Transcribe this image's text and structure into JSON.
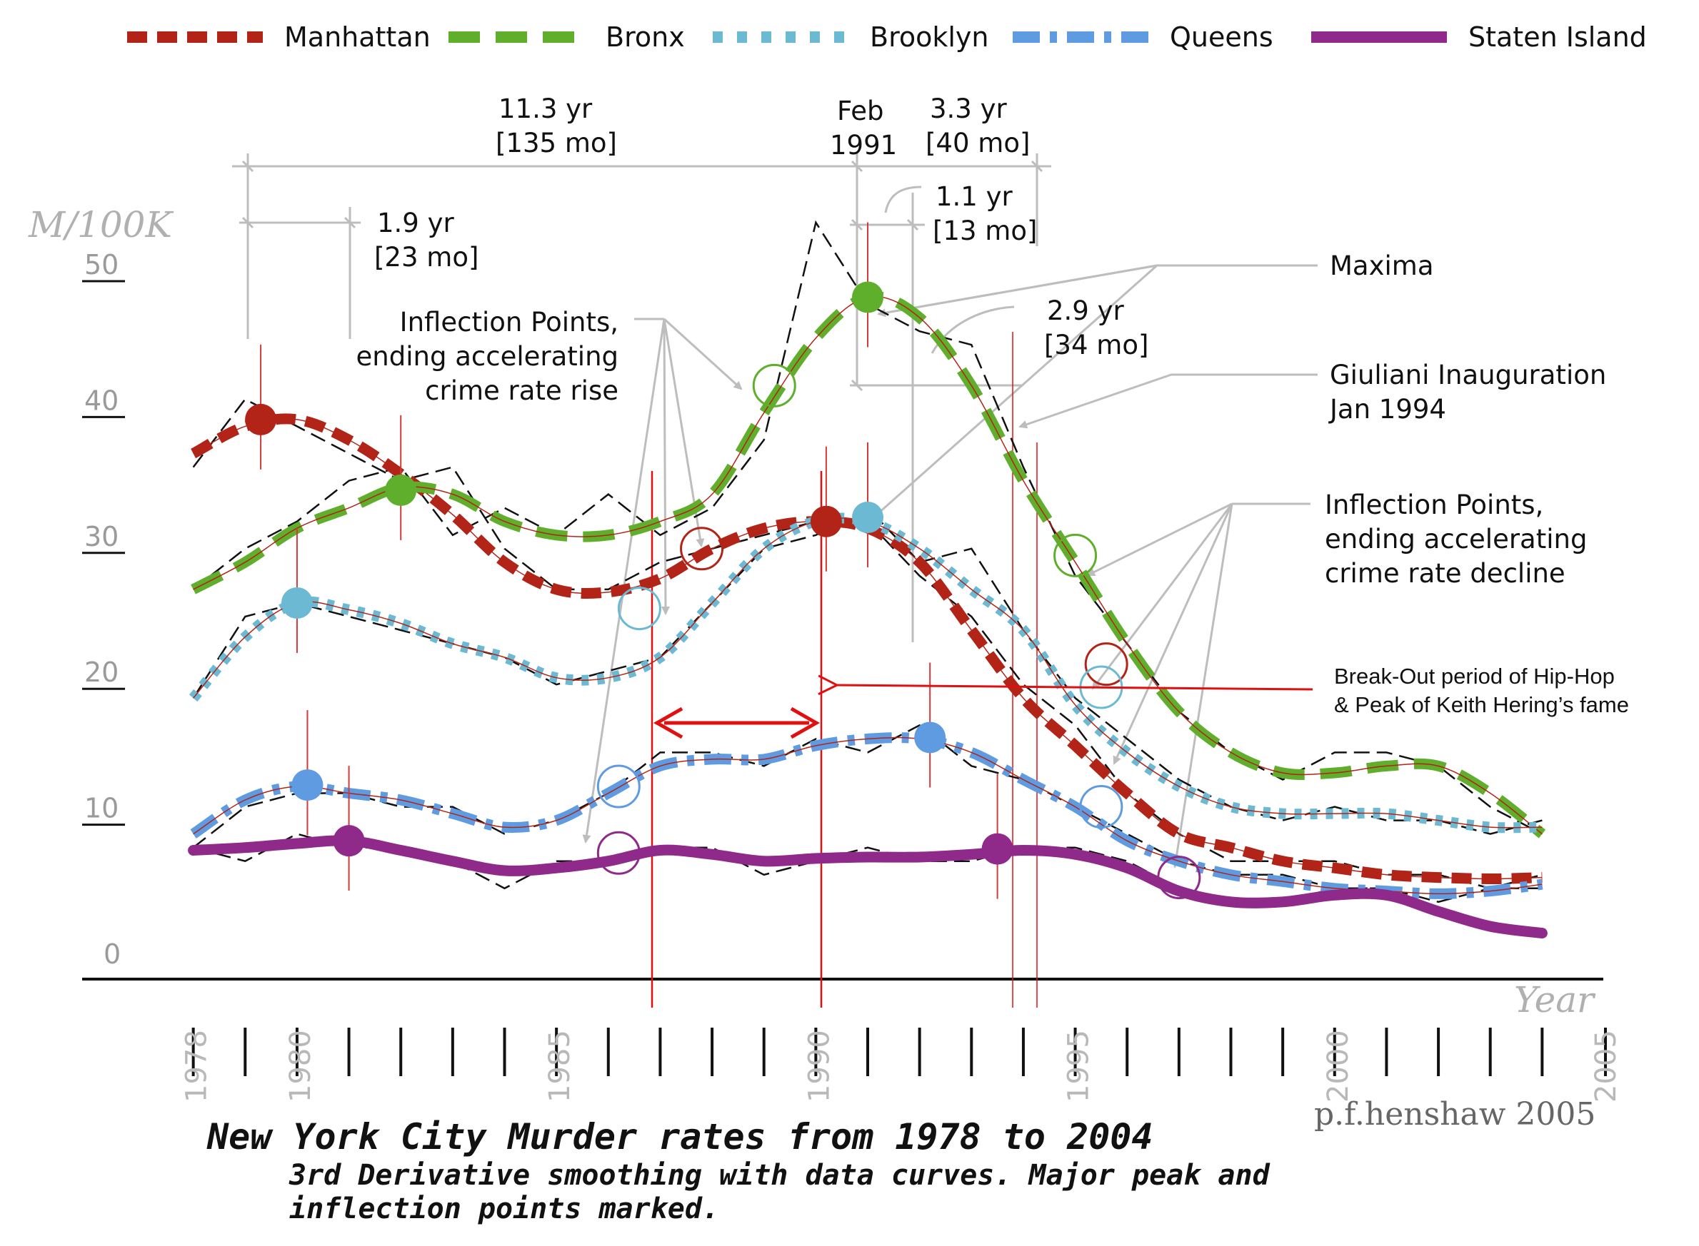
{
  "chart_data": {
    "type": "line",
    "title": "New York City Murder rates from 1978 to 2004",
    "subtitle_line1": "3rd Derivative smoothing with data curves. Major peak and",
    "subtitle_line2": "inflection points marked.",
    "credit": "p.f.henshaw 2005",
    "ylabel": "M/100K",
    "xlabel": "Year",
    "ylim": [
      0,
      50
    ],
    "xlim": [
      1977,
      2005
    ],
    "y_ticks": [
      "0",
      "10",
      "20",
      "30",
      "40",
      "50"
    ],
    "x_tick_labels": [
      "1978",
      "1980",
      "1985",
      "1990",
      "1995",
      "2000",
      "2005"
    ],
    "grid": false,
    "legend_position": "top",
    "series": [
      {
        "name": "Manhattan",
        "color": "#b22418",
        "style": "dashed",
        "smooth": [
          [
            1978,
            37.0
          ],
          [
            1979,
            39.0
          ],
          [
            1980,
            39.5
          ],
          [
            1981,
            38.0
          ],
          [
            1982,
            35.5
          ],
          [
            1983,
            32.5
          ],
          [
            1984,
            29.0
          ],
          [
            1985,
            27.0
          ],
          [
            1986,
            26.8
          ],
          [
            1987,
            27.8
          ],
          [
            1988,
            30.0
          ],
          [
            1989,
            31.5
          ],
          [
            1990,
            32.0
          ],
          [
            1991,
            31.5
          ],
          [
            1992,
            29.0
          ],
          [
            1993,
            24.0
          ],
          [
            1994,
            19.0
          ],
          [
            1995,
            15.5
          ],
          [
            1996,
            12.0
          ],
          [
            1997,
            9.0
          ],
          [
            1998,
            8.0
          ],
          [
            1999,
            7.0
          ],
          [
            2000,
            6.5
          ],
          [
            2001,
            6.0
          ],
          [
            2002,
            5.8
          ],
          [
            2003,
            5.7
          ],
          [
            2004,
            5.8
          ]
        ],
        "raw": [
          [
            1978,
            36
          ],
          [
            1979,
            41
          ],
          [
            1980,
            39
          ],
          [
            1981,
            37
          ],
          [
            1982,
            35
          ],
          [
            1983,
            36
          ],
          [
            1984,
            30
          ],
          [
            1985,
            27
          ],
          [
            1986,
            27
          ],
          [
            1987,
            29
          ],
          [
            1988,
            30
          ],
          [
            1989,
            31
          ],
          [
            1990,
            32
          ],
          [
            1991,
            32
          ],
          [
            1992,
            28
          ],
          [
            1993,
            25
          ],
          [
            1994,
            20
          ],
          [
            1995,
            17
          ],
          [
            1996,
            12
          ],
          [
            1997,
            9
          ],
          [
            1998,
            7
          ],
          [
            1999,
            7
          ],
          [
            2000,
            7
          ],
          [
            2001,
            6
          ],
          [
            2002,
            6
          ],
          [
            2003,
            5
          ],
          [
            2004,
            6
          ]
        ],
        "maxima": [
          [
            1979.3,
            39.5
          ],
          [
            1990.2,
            32.0
          ]
        ],
        "inflection_points": [
          [
            1987.8,
            30.0
          ],
          [
            1995.6,
            21.5
          ]
        ]
      },
      {
        "name": "Bronx",
        "color": "#5fae2c",
        "style": "long-dashed",
        "smooth": [
          [
            1978,
            27.0
          ],
          [
            1979,
            29.0
          ],
          [
            1980,
            31.5
          ],
          [
            1981,
            33.0
          ],
          [
            1982,
            34.5
          ],
          [
            1983,
            34.0
          ],
          [
            1984,
            32.0
          ],
          [
            1985,
            31.0
          ],
          [
            1986,
            31.0
          ],
          [
            1987,
            32.0
          ],
          [
            1988,
            34.0
          ],
          [
            1989,
            40.0
          ],
          [
            1990,
            45.5
          ],
          [
            1991,
            48.5
          ],
          [
            1992,
            47.0
          ],
          [
            1993,
            42.0
          ],
          [
            1994,
            35.0
          ],
          [
            1995,
            29.0
          ],
          [
            1996,
            23.0
          ],
          [
            1997,
            18.0
          ],
          [
            1998,
            15.0
          ],
          [
            1999,
            13.5
          ],
          [
            2000,
            13.5
          ],
          [
            2001,
            14.0
          ],
          [
            2002,
            14.0
          ],
          [
            2003,
            12.0
          ],
          [
            2004,
            9.0
          ]
        ],
        "raw": [
          [
            1978,
            27
          ],
          [
            1979,
            30
          ],
          [
            1980,
            32
          ],
          [
            1981,
            35
          ],
          [
            1982,
            36
          ],
          [
            1983,
            31
          ],
          [
            1984,
            33
          ],
          [
            1985,
            31
          ],
          [
            1986,
            34
          ],
          [
            1987,
            31
          ],
          [
            1988,
            33
          ],
          [
            1989,
            38
          ],
          [
            1990,
            54
          ],
          [
            1991,
            48
          ],
          [
            1992,
            46
          ],
          [
            1993,
            45
          ],
          [
            1994,
            36
          ],
          [
            1995,
            28
          ],
          [
            1996,
            23
          ],
          [
            1997,
            18
          ],
          [
            1998,
            15
          ],
          [
            1999,
            13
          ],
          [
            2000,
            15
          ],
          [
            2001,
            15
          ],
          [
            2002,
            14
          ],
          [
            2003,
            11
          ],
          [
            2004,
            9
          ]
        ],
        "maxima": [
          [
            1982.0,
            34.3
          ],
          [
            1991.0,
            48.5
          ]
        ],
        "inflection_points": [
          [
            1989.2,
            42.0
          ],
          [
            1995.0,
            29.5
          ]
        ]
      },
      {
        "name": "Brooklyn",
        "color": "#6cb9d3",
        "style": "dotted",
        "smooth": [
          [
            1978,
            19.0
          ],
          [
            1979,
            23.5
          ],
          [
            1980,
            26.0
          ],
          [
            1981,
            25.5
          ],
          [
            1982,
            24.5
          ],
          [
            1983,
            23.0
          ],
          [
            1984,
            22.0
          ],
          [
            1985,
            20.5
          ],
          [
            1986,
            20.5
          ],
          [
            1987,
            22.0
          ],
          [
            1988,
            26.0
          ],
          [
            1989,
            30.0
          ],
          [
            1990,
            32.0
          ],
          [
            1991,
            32.0
          ],
          [
            1992,
            30.0
          ],
          [
            1993,
            27.0
          ],
          [
            1994,
            24.0
          ],
          [
            1995,
            18.5
          ],
          [
            1996,
            15.0
          ],
          [
            1997,
            12.5
          ],
          [
            1998,
            11.0
          ],
          [
            1999,
            10.5
          ],
          [
            2000,
            10.5
          ],
          [
            2001,
            10.5
          ],
          [
            2002,
            10.0
          ],
          [
            2003,
            9.5
          ],
          [
            2004,
            9.5
          ]
        ],
        "raw": [
          [
            1978,
            19
          ],
          [
            1979,
            25
          ],
          [
            1980,
            26
          ],
          [
            1981,
            25
          ],
          [
            1982,
            24
          ],
          [
            1983,
            23
          ],
          [
            1984,
            22
          ],
          [
            1985,
            20
          ],
          [
            1986,
            21
          ],
          [
            1987,
            22
          ],
          [
            1988,
            26
          ],
          [
            1989,
            30
          ],
          [
            1990,
            31
          ],
          [
            1991,
            33
          ],
          [
            1992,
            29
          ],
          [
            1993,
            30
          ],
          [
            1994,
            24
          ],
          [
            1995,
            19
          ],
          [
            1996,
            16
          ],
          [
            1997,
            13
          ],
          [
            1998,
            11
          ],
          [
            1999,
            10
          ],
          [
            2000,
            11
          ],
          [
            2001,
            10
          ],
          [
            2002,
            10
          ],
          [
            2003,
            9
          ],
          [
            2004,
            10
          ]
        ],
        "maxima": [
          [
            1980.0,
            26.0
          ],
          [
            1991.0,
            32.3
          ]
        ],
        "inflection_points": [
          [
            1986.6,
            25.6
          ],
          [
            1995.5,
            19.8
          ]
        ]
      },
      {
        "name": "Queens",
        "color": "#5e9be0",
        "style": "dash-dot",
        "smooth": [
          [
            1978,
            9.0
          ],
          [
            1979,
            11.5
          ],
          [
            1980,
            12.5
          ],
          [
            1981,
            12.0
          ],
          [
            1982,
            11.5
          ],
          [
            1983,
            10.5
          ],
          [
            1984,
            9.5
          ],
          [
            1985,
            10.0
          ],
          [
            1986,
            12.0
          ],
          [
            1987,
            14.0
          ],
          [
            1988,
            14.5
          ],
          [
            1989,
            14.5
          ],
          [
            1990,
            15.5
          ],
          [
            1991,
            16.0
          ],
          [
            1992,
            16.0
          ],
          [
            1993,
            15.0
          ],
          [
            1994,
            13.0
          ],
          [
            1995,
            11.0
          ],
          [
            1996,
            8.5
          ],
          [
            1997,
            7.0
          ],
          [
            1998,
            6.0
          ],
          [
            1999,
            5.5
          ],
          [
            2000,
            5.0
          ],
          [
            2001,
            4.8
          ],
          [
            2002,
            4.6
          ],
          [
            2003,
            4.8
          ],
          [
            2004,
            5.3
          ]
        ],
        "raw": [
          [
            1978,
            8
          ],
          [
            1979,
            11
          ],
          [
            1980,
            12
          ],
          [
            1981,
            12
          ],
          [
            1982,
            11
          ],
          [
            1983,
            11
          ],
          [
            1984,
            9
          ],
          [
            1985,
            10
          ],
          [
            1986,
            12
          ],
          [
            1987,
            15
          ],
          [
            1988,
            15
          ],
          [
            1989,
            14
          ],
          [
            1990,
            16
          ],
          [
            1991,
            15
          ],
          [
            1992,
            17
          ],
          [
            1993,
            14
          ],
          [
            1994,
            13
          ],
          [
            1995,
            11
          ],
          [
            1996,
            9
          ],
          [
            1997,
            7
          ],
          [
            1998,
            6
          ],
          [
            1999,
            6
          ],
          [
            2000,
            5
          ],
          [
            2001,
            5
          ],
          [
            2002,
            4
          ],
          [
            2003,
            5
          ],
          [
            2004,
            5
          ]
        ],
        "maxima": [
          [
            1980.2,
            12.6
          ],
          [
            1992.2,
            16.1
          ]
        ],
        "inflection_points": [
          [
            1986.2,
            12.5
          ],
          [
            1995.5,
            11.0
          ]
        ]
      },
      {
        "name": "Staten Island",
        "color": "#8f2a8a",
        "style": "solid",
        "smooth": [
          [
            1978,
            7.8
          ],
          [
            1979,
            8.0
          ],
          [
            1980,
            8.3
          ],
          [
            1981,
            8.5
          ],
          [
            1982,
            7.8
          ],
          [
            1983,
            7.0
          ],
          [
            1984,
            6.3
          ],
          [
            1985,
            6.5
          ],
          [
            1986,
            7.0
          ],
          [
            1987,
            7.8
          ],
          [
            1988,
            7.5
          ],
          [
            1989,
            7.0
          ],
          [
            1990,
            7.2
          ],
          [
            1991,
            7.3
          ],
          [
            1992,
            7.3
          ],
          [
            1993,
            7.5
          ],
          [
            1994,
            7.8
          ],
          [
            1995,
            7.5
          ],
          [
            1996,
            6.5
          ],
          [
            1997,
            4.8
          ],
          [
            1998,
            4.0
          ],
          [
            1999,
            4.0
          ],
          [
            2000,
            4.5
          ],
          [
            2001,
            4.5
          ],
          [
            2002,
            3.3
          ],
          [
            2003,
            2.2
          ],
          [
            2004,
            1.7
          ]
        ],
        "raw": [
          [
            1978,
            8
          ],
          [
            1979,
            7
          ],
          [
            1980,
            9
          ],
          [
            1981,
            8
          ],
          [
            1982,
            8
          ],
          [
            1983,
            7
          ],
          [
            1984,
            5
          ],
          [
            1985,
            7
          ],
          [
            1986,
            7
          ],
          [
            1987,
            8
          ],
          [
            1988,
            8
          ],
          [
            1989,
            6
          ],
          [
            1990,
            7
          ],
          [
            1991,
            8
          ],
          [
            1992,
            7
          ],
          [
            1993,
            7
          ],
          [
            1994,
            8
          ],
          [
            1995,
            8
          ],
          [
            1996,
            7
          ],
          [
            1997,
            5
          ],
          [
            1998,
            4
          ],
          [
            1999,
            4
          ],
          [
            2000,
            5
          ],
          [
            2001,
            5
          ],
          [
            2002,
            3
          ],
          [
            2003,
            2
          ],
          [
            2004,
            2
          ]
        ],
        "maxima": [
          [
            1981.0,
            8.5
          ],
          [
            1993.5,
            7.9
          ]
        ],
        "inflection_points": [
          [
            1986.2,
            7.6
          ],
          [
            1997.0,
            5.8
          ]
        ]
      }
    ],
    "annotations": {
      "span_11_3": {
        "line1": "11.3 yr",
        "line2": "[135 mo]"
      },
      "span_1_9": {
        "line1": "1.9 yr",
        "line2": "[23 mo]"
      },
      "feb_1991": {
        "line1": "Feb",
        "line2": "1991"
      },
      "span_3_3": {
        "line1": "3.3 yr",
        "line2": "[40 mo]"
      },
      "span_1_1": {
        "line1": "1.1 yr",
        "line2": "[13 mo]"
      },
      "span_2_9": {
        "line1": "2.9 yr",
        "line2": "[34 mo]"
      },
      "maxima": "Maxima",
      "giuliani": {
        "line1": "Giuliani Inauguration",
        "line2": "Jan 1994"
      },
      "inflection_rise": {
        "line1": "Inflection Points,",
        "line2": "ending accelerating",
        "line3": "crime rate rise"
      },
      "inflection_decline": {
        "line1": "Inflection Points,",
        "line2": "ending accelerating",
        "line3": "crime rate decline"
      },
      "hiphop": {
        "line1": "Break-Out period of Hip-Hop",
        "line2": "& Peak of Keith Hering’s fame"
      }
    }
  }
}
